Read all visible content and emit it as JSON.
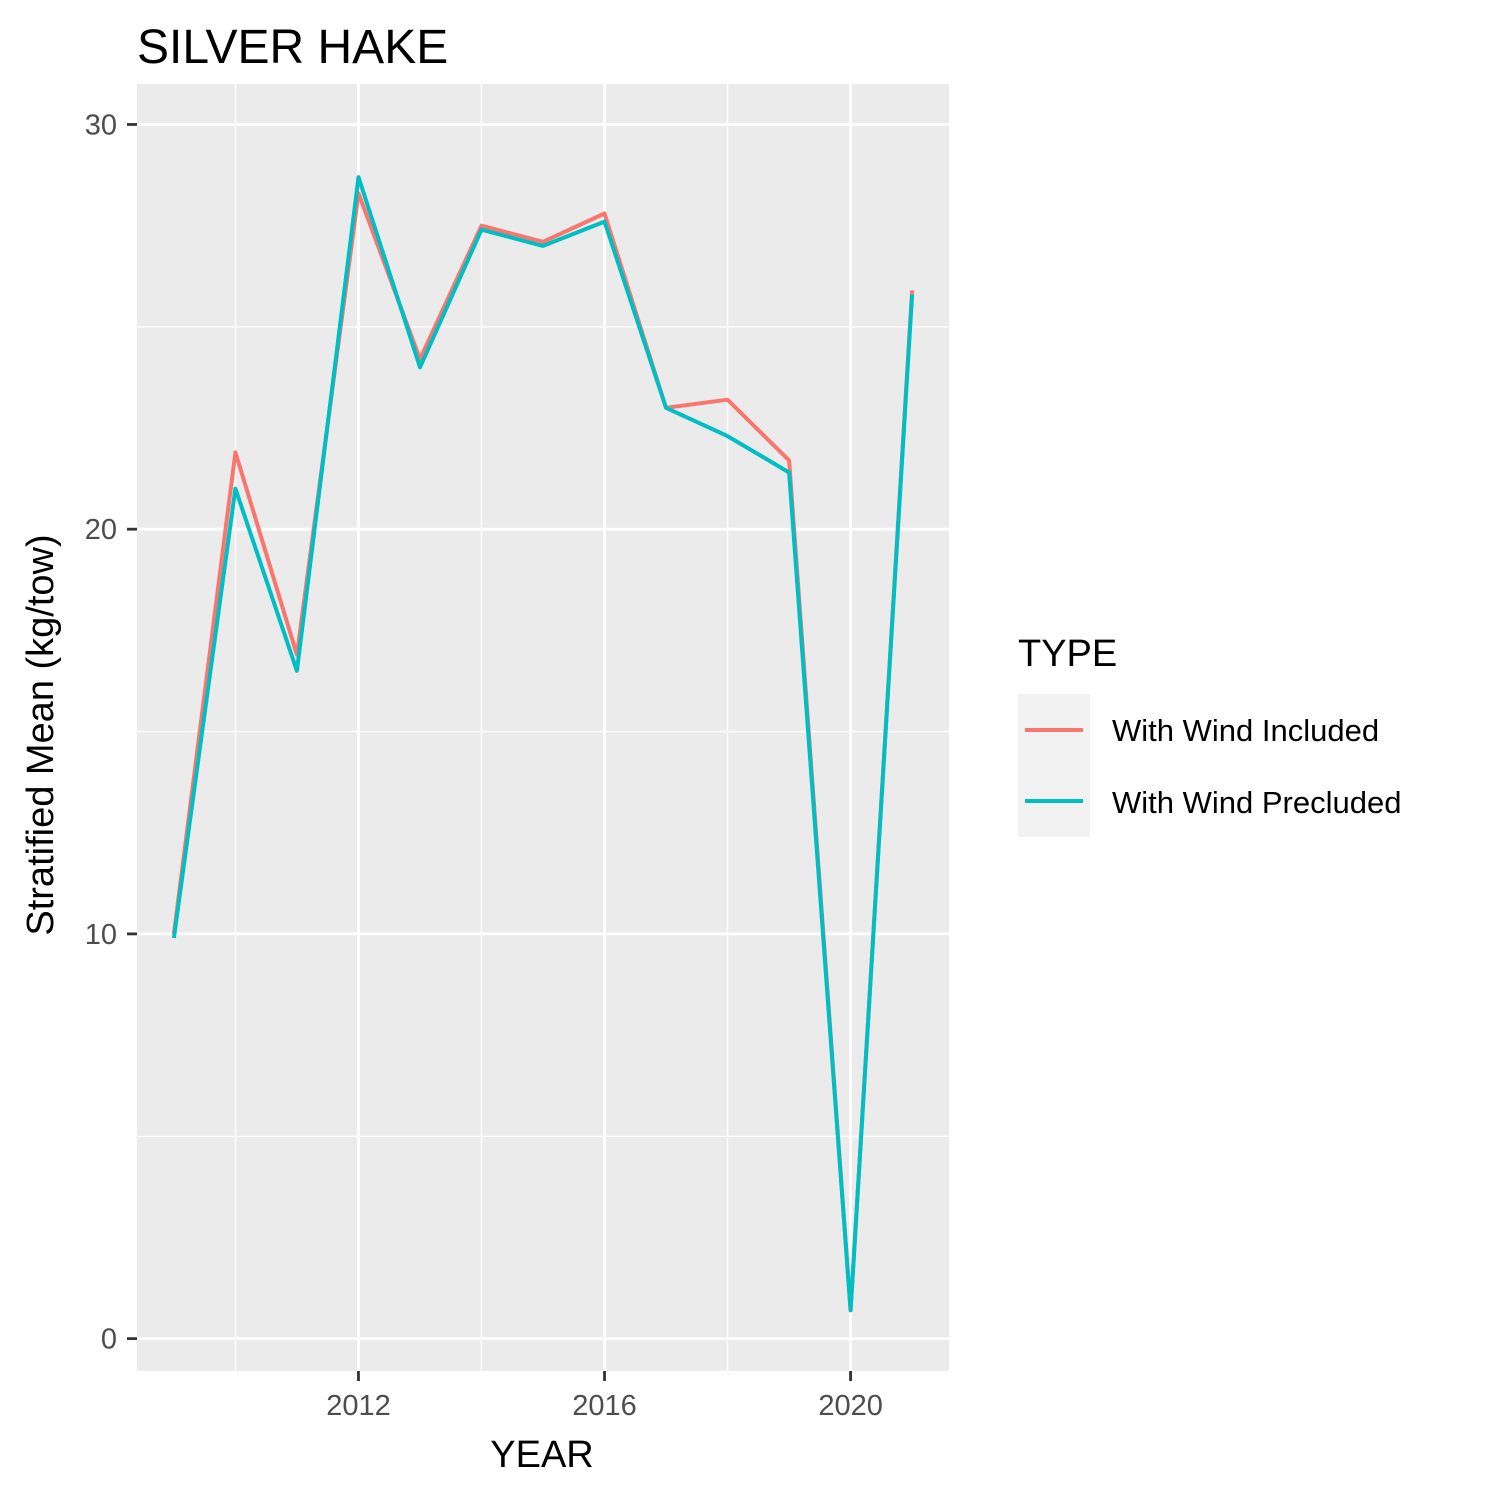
{
  "chart_data": {
    "type": "line",
    "title": "SILVER HAKE",
    "xlabel": "YEAR",
    "ylabel": "Stratified Mean (kg/tow)",
    "x": [
      2009,
      2010,
      2011,
      2012,
      2013,
      2014,
      2015,
      2016,
      2017,
      2018,
      2019,
      2020,
      2021
    ],
    "xlim": [
      2008.4,
      2021.6
    ],
    "ylim": [
      -0.8,
      31.0
    ],
    "x_ticks": [
      2012,
      2016,
      2020
    ],
    "x_tick_labels": [
      "2012",
      "2016",
      "2020"
    ],
    "y_ticks": [
      0,
      10,
      20,
      30
    ],
    "y_tick_labels": [
      "0",
      "10",
      "20",
      "30"
    ],
    "x_minor_ticks": [
      2010,
      2014,
      2018
    ],
    "y_minor_ticks": [
      5,
      15,
      25
    ],
    "grid": true,
    "legend": {
      "title": "TYPE",
      "placement": "right"
    },
    "series": [
      {
        "name": "With Wind Included",
        "color": "#F8766D",
        "values": [
          10.0,
          21.9,
          16.9,
          28.3,
          24.2,
          27.5,
          27.1,
          27.8,
          23.0,
          23.2,
          21.7,
          0.7,
          25.9
        ]
      },
      {
        "name": "With Wind Precluded",
        "color": "#00BFC4",
        "values": [
          9.9,
          21.0,
          16.5,
          28.7,
          24.0,
          27.4,
          27.0,
          27.6,
          23.0,
          22.3,
          21.4,
          0.7,
          25.8
        ]
      }
    ],
    "panel_background": "#EBEBEB",
    "grid_color": "#FFFFFF",
    "legend_key_background": "#F2F2F2"
  }
}
